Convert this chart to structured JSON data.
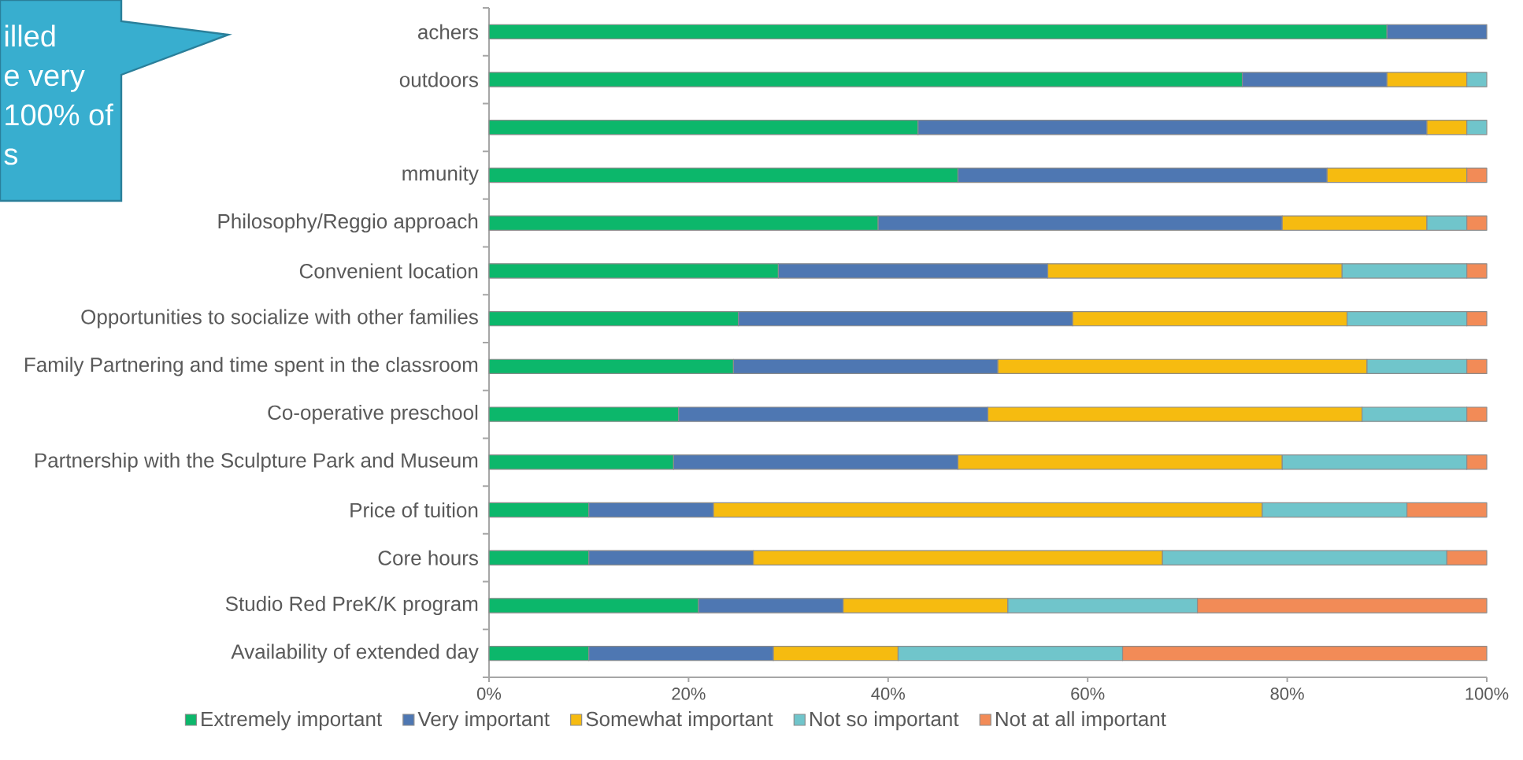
{
  "chart_data": {
    "type": "bar",
    "orientation": "horizontal",
    "stacked": true,
    "categories": [
      "achers",
      "outdoors",
      null,
      "mmunity",
      "Philosophy/Reggio approach",
      "Convenient location",
      "Opportunities to socialize with other families",
      "Family Partnering and time spent in the classroom",
      "Co-operative preschool",
      "Partnership with the Sculpture Park and Museum",
      "Price of tuition",
      "Core hours",
      "Studio Red PreK/K program",
      "Availability of extended day"
    ],
    "series": [
      {
        "name": "Extremely important",
        "color": "#0cb76b",
        "values": [
          90,
          75.5,
          43,
          47,
          39,
          29,
          25,
          24.5,
          19,
          18.5,
          10,
          10,
          21,
          10
        ]
      },
      {
        "name": "Very important",
        "color": "#4e77b2",
        "values": [
          10,
          14.5,
          51,
          37,
          40.5,
          27,
          33.5,
          26.5,
          31,
          28.5,
          12.5,
          16.5,
          14.5,
          18.5
        ]
      },
      {
        "name": "Somewhat important",
        "color": "#f6bb10",
        "values": [
          0,
          8,
          4,
          14,
          14.5,
          29.5,
          27.5,
          37,
          37.5,
          32.5,
          55,
          41,
          16.5,
          12.5
        ]
      },
      {
        "name": "Not so important",
        "color": "#70c5cb",
        "values": [
          0,
          2,
          2,
          0,
          4,
          12.5,
          12,
          10,
          10.5,
          18.5,
          14.5,
          28.5,
          19,
          22.5
        ]
      },
      {
        "name": "Not at all important",
        "color": "#f28b57",
        "values": [
          0,
          0,
          0,
          2,
          2,
          2,
          2,
          2,
          2,
          2,
          8,
          4,
          29,
          36.5
        ]
      }
    ],
    "xlim": [
      0,
      100
    ],
    "xticks": [
      {
        "value": 0,
        "label": "0%"
      },
      {
        "value": 20,
        "label": "20%"
      },
      {
        "value": 40,
        "label": "40%"
      },
      {
        "value": 60,
        "label": "60%"
      },
      {
        "value": 80,
        "label": "80%"
      },
      {
        "value": 100,
        "label": "100%"
      }
    ],
    "legend": "bottom",
    "annotations": [
      "illed",
      "e very",
      "100% of",
      "s"
    ]
  }
}
